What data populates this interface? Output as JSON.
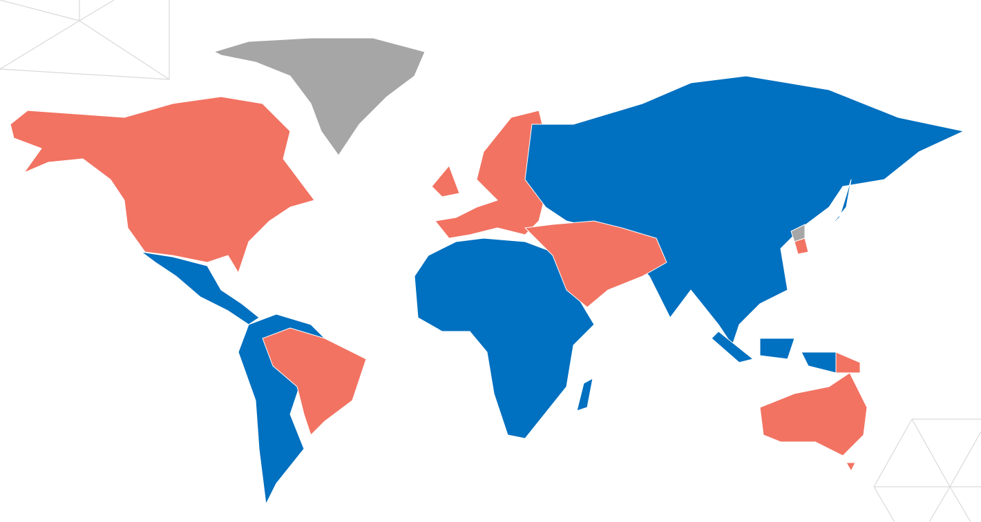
{
  "map": {
    "type": "choropleth world map",
    "colors": {
      "group_a": "#F27362",
      "group_b": "#0070C0",
      "no_data": "#A6A6A6",
      "decoration": "#D9D9D9"
    },
    "regions": [
      {
        "id": "north-america",
        "group": "group_a"
      },
      {
        "id": "greenland",
        "group": "no_data"
      },
      {
        "id": "central-america",
        "group": "group_b"
      },
      {
        "id": "south-america",
        "group": "group_b"
      },
      {
        "id": "brazil",
        "group": "group_a"
      },
      {
        "id": "africa",
        "group": "group_b"
      },
      {
        "id": "madagascar",
        "group": "group_b"
      },
      {
        "id": "europe",
        "group": "group_a"
      },
      {
        "id": "uk-ireland",
        "group": "group_a"
      },
      {
        "id": "russia-asia",
        "group": "group_b"
      },
      {
        "id": "middle-east",
        "group": "group_a"
      },
      {
        "id": "japan",
        "group": "group_b"
      },
      {
        "id": "north-korea",
        "group": "no_data"
      },
      {
        "id": "south-korea",
        "group": "group_a"
      },
      {
        "id": "sumatra",
        "group": "group_b"
      },
      {
        "id": "borneo",
        "group": "group_b"
      },
      {
        "id": "new-guinea-west",
        "group": "group_b"
      },
      {
        "id": "papua-new-guinea",
        "group": "group_a"
      },
      {
        "id": "australia",
        "group": "group_a"
      },
      {
        "id": "tasmania",
        "group": "group_a"
      }
    ]
  }
}
